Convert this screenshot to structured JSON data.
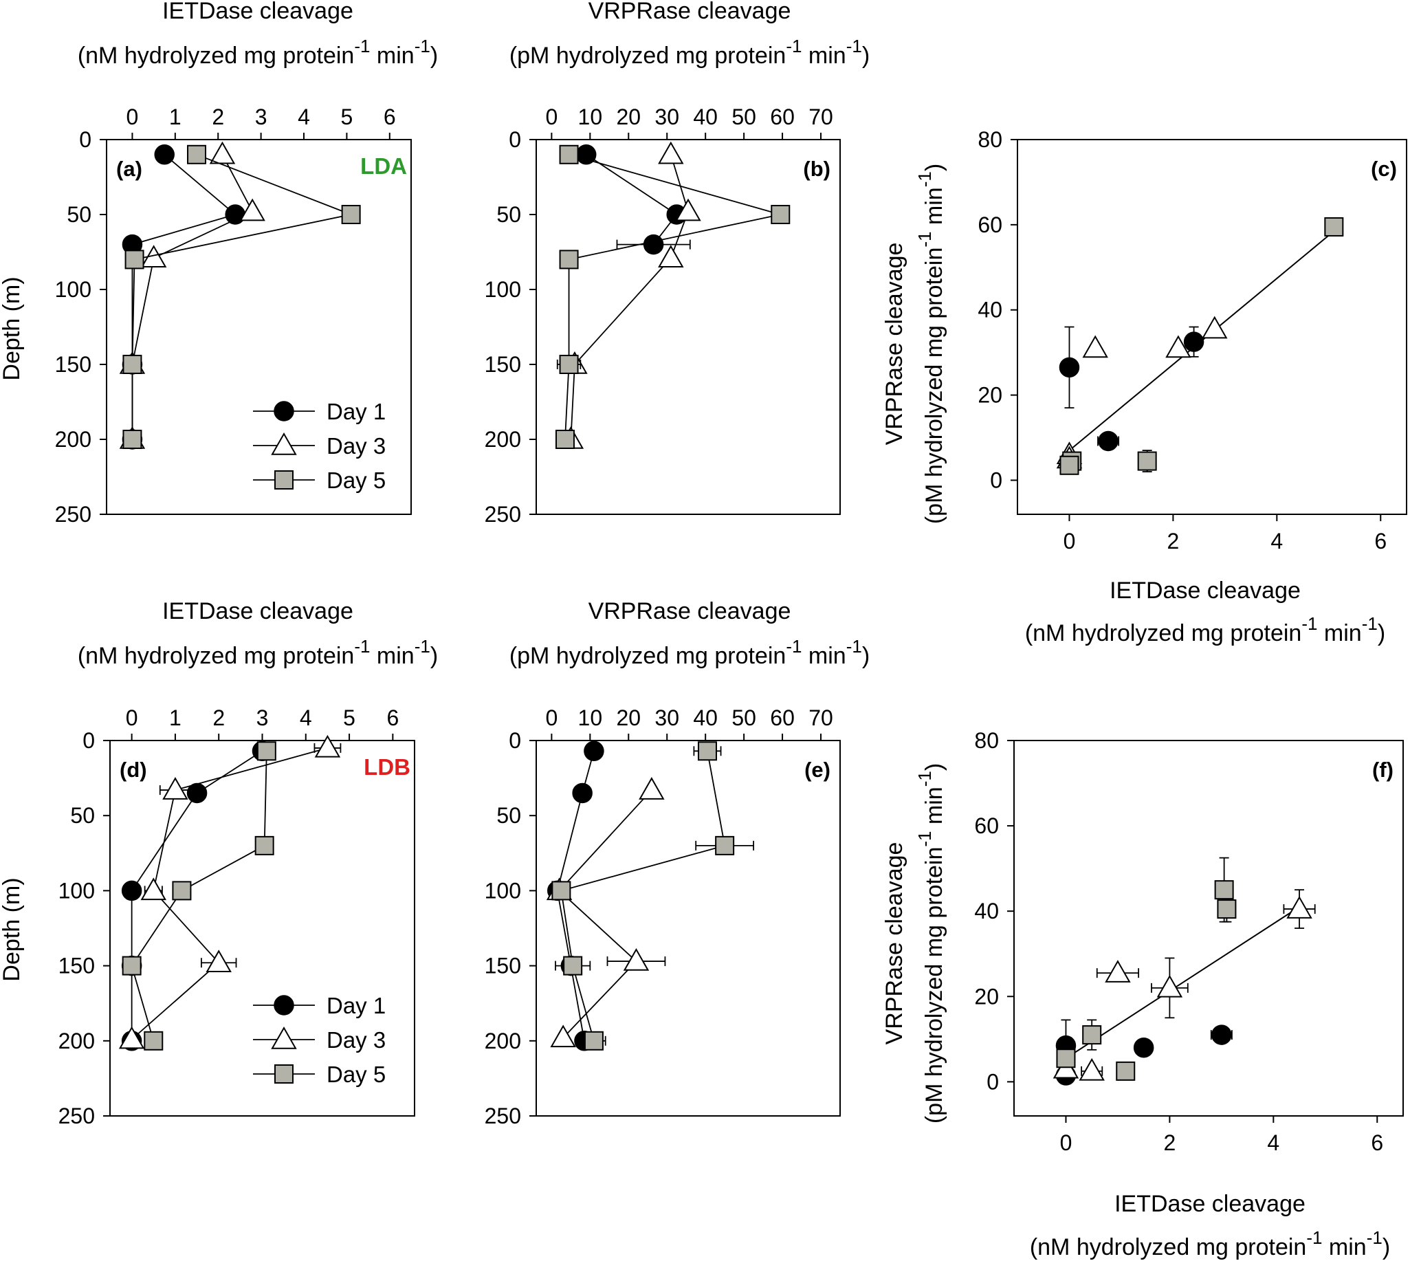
{
  "axis_titles": {
    "depth": "Depth (m)",
    "ietdase_line1": "IETDase cleavage",
    "ietdase_line2_a": "(nM hydrolyzed mg protein",
    "ietdase_line2_b": " min",
    "ietdase_line2_c": ")",
    "vrprase_line1": "VRPRase cleavage",
    "vrprase_line2_a": "(pM hydrolyzed mg protein",
    "vrprase_line2_b": " min",
    "vrprase_line2_c": ")",
    "exp": "-1"
  },
  "legend": [
    "Day 1",
    "Day 3",
    "Day 5"
  ],
  "colors": {
    "day5_fill": "#b2b2a8",
    "lda": "#2e9a2e",
    "ldb": "#e02020"
  },
  "chart_data": [
    {
      "id": "a",
      "label": "(a)",
      "site": "LDA",
      "type": "line",
      "title": "IETDase cleavage",
      "xlabel": "(nM hydrolyzed mg protein-1 min-1)",
      "ylabel": "Depth (m)",
      "xlim": [
        -0.6,
        6.5
      ],
      "ylim": [
        0,
        250
      ],
      "xticks": [
        0,
        1,
        2,
        3,
        4,
        5,
        6
      ],
      "yticks": [
        0,
        50,
        100,
        150,
        200,
        250
      ],
      "series": [
        {
          "name": "Day 1",
          "points": [
            {
              "x": 0.75,
              "y": 10
            },
            {
              "x": 2.4,
              "y": 50
            },
            {
              "x": 0,
              "y": 70
            },
            {
              "x": 0,
              "y": 150
            },
            {
              "x": 0,
              "y": 200
            }
          ]
        },
        {
          "name": "Day 3",
          "points": [
            {
              "x": 2.1,
              "y": 10
            },
            {
              "x": 2.8,
              "y": 48
            },
            {
              "x": 0.5,
              "y": 79
            },
            {
              "x": 0,
              "y": 150
            },
            {
              "x": 0,
              "y": 200
            }
          ]
        },
        {
          "name": "Day 5",
          "points": [
            {
              "x": 1.5,
              "y": 10
            },
            {
              "x": 5.1,
              "y": 50
            },
            {
              "x": 0.05,
              "y": 80
            },
            {
              "x": 0,
              "y": 150
            },
            {
              "x": 0,
              "y": 200
            }
          ]
        }
      ]
    },
    {
      "id": "b",
      "label": "(b)",
      "site": "",
      "type": "line",
      "title": "VRPRase cleavage",
      "xlabel": "(pM hydrolyzed mg protein-1 min-1)",
      "ylabel": "",
      "xlim": [
        -4,
        75
      ],
      "ylim": [
        0,
        250
      ],
      "xticks": [
        0,
        10,
        20,
        30,
        40,
        50,
        60,
        70
      ],
      "yticks": [
        0,
        50,
        100,
        150,
        200,
        250
      ],
      "series": [
        {
          "name": "Day 1",
          "points": [
            {
              "x": 9,
              "y": 10
            },
            {
              "x": 32.5,
              "y": 50
            },
            {
              "x": 26.5,
              "y": 70,
              "xerr": 9.5
            }
          ]
        },
        {
          "name": "Day 3",
          "points": [
            {
              "x": 31,
              "y": 10
            },
            {
              "x": 35.5,
              "y": 48
            },
            {
              "x": 31,
              "y": 79
            },
            {
              "x": 6,
              "y": 150
            },
            {
              "x": 5,
              "y": 200
            }
          ]
        },
        {
          "name": "Day 5",
          "points": [
            {
              "x": 4.5,
              "y": 10,
              "xerr": 2
            },
            {
              "x": 59.5,
              "y": 50
            },
            {
              "x": 4.5,
              "y": 80
            },
            {
              "x": 4.5,
              "y": 150,
              "xerr": 3
            },
            {
              "x": 3.5,
              "y": 200
            }
          ]
        }
      ]
    },
    {
      "id": "c",
      "label": "(c)",
      "site": "",
      "type": "scatter",
      "xlabel": "IETDase cleavage",
      "ylabel": "VRPRase cleavage",
      "xlim": [
        -1,
        6.5
      ],
      "ylim": [
        -8,
        80
      ],
      "xticks": [
        0,
        2,
        4,
        6
      ],
      "yticks": [
        0,
        20,
        40,
        60,
        80
      ],
      "series": [
        {
          "name": "Day 1",
          "points": [
            {
              "x": 0,
              "y": 26.5,
              "yerr": 9.5
            },
            {
              "x": 0.75,
              "y": 9.2,
              "xerr": 0.2
            },
            {
              "x": 2.4,
              "y": 32.5,
              "yerr": 3.5
            }
          ]
        },
        {
          "name": "Day 3",
          "points": [
            {
              "x": 0.5,
              "y": 31
            },
            {
              "x": 2.1,
              "y": 31
            },
            {
              "x": 2.8,
              "y": 35.5
            },
            {
              "x": 0,
              "y": 6
            },
            {
              "x": 0,
              "y": 5
            }
          ]
        },
        {
          "name": "Day 5",
          "points": [
            {
              "x": 0.05,
              "y": 4.5,
              "yerr": 2
            },
            {
              "x": 0,
              "y": 3.5
            },
            {
              "x": 1.5,
              "y": 4.5,
              "yerr": 2.5
            },
            {
              "x": 5.1,
              "y": 59.5
            }
          ]
        }
      ],
      "fit": [
        {
          "x": 0,
          "y": 7
        },
        {
          "x": 5.1,
          "y": 58.5
        }
      ]
    },
    {
      "id": "d",
      "label": "(d)",
      "site": "LDB",
      "type": "line",
      "title": "IETDase cleavage",
      "xlabel": "(nM hydrolyzed mg protein-1 min-1)",
      "ylabel": "Depth (m)",
      "xlim": [
        -0.5,
        6.5
      ],
      "ylim": [
        0,
        250
      ],
      "xticks": [
        0,
        1,
        2,
        3,
        4,
        5,
        6
      ],
      "yticks": [
        0,
        50,
        100,
        150,
        200,
        250
      ],
      "series": [
        {
          "name": "Day 1",
          "points": [
            {
              "x": 3,
              "y": 7
            },
            {
              "x": 1.5,
              "y": 35
            },
            {
              "x": 0,
              "y": 100
            },
            {
              "x": 0,
              "y": 150
            },
            {
              "x": 0,
              "y": 200
            }
          ]
        },
        {
          "name": "Day 3",
          "points": [
            {
              "x": 4.5,
              "y": 5,
              "xerr": 0.3
            },
            {
              "x": 1,
              "y": 33,
              "xerr": 0.35
            },
            {
              "x": 0.5,
              "y": 100,
              "xerr": 0.2
            },
            {
              "x": 2,
              "y": 148,
              "xerr": 0.4
            },
            {
              "x": 0,
              "y": 199
            }
          ]
        },
        {
          "name": "Day 5",
          "points": [
            {
              "x": 3.1,
              "y": 7
            },
            {
              "x": 3.05,
              "y": 70
            },
            {
              "x": 1.15,
              "y": 100
            },
            {
              "x": 0,
              "y": 150
            },
            {
              "x": 0.5,
              "y": 200
            }
          ]
        }
      ]
    },
    {
      "id": "e",
      "label": "(e)",
      "site": "",
      "type": "line",
      "title": "VRPRase cleavage",
      "xlabel": "(pM hydrolyzed mg protein-1 min-1)",
      "ylabel": "",
      "xlim": [
        -4,
        75
      ],
      "ylim": [
        0,
        250
      ],
      "xticks": [
        0,
        10,
        20,
        30,
        40,
        50,
        60,
        70
      ],
      "yticks": [
        0,
        50,
        100,
        150,
        200,
        250
      ],
      "series": [
        {
          "name": "Day 1",
          "points": [
            {
              "x": 11,
              "y": 7
            },
            {
              "x": 8,
              "y": 35
            },
            {
              "x": 1.5,
              "y": 100
            },
            {
              "x": 5,
              "y": 150
            },
            {
              "x": 8.5,
              "y": 200
            }
          ]
        },
        {
          "name": "Day 3",
          "points": [
            {
              "x": 26,
              "y": 33
            },
            {
              "x": 2,
              "y": 100
            },
            {
              "x": 22,
              "y": 147,
              "xerr": 7.5
            },
            {
              "x": 3,
              "y": 198
            }
          ]
        },
        {
          "name": "Day 5",
          "points": [
            {
              "x": 40.5,
              "y": 7,
              "xerr": 3.5
            },
            {
              "x": 45,
              "y": 70,
              "xerr": 7.5
            },
            {
              "x": 2.5,
              "y": 100
            },
            {
              "x": 5.5,
              "y": 150,
              "xerr": 4.5
            },
            {
              "x": 11,
              "y": 200,
              "xerr": 3
            }
          ]
        }
      ]
    },
    {
      "id": "f",
      "label": "(f)",
      "site": "",
      "type": "scatter",
      "xlabel": "IETDase cleavage",
      "ylabel": "VRPRase cleavage",
      "xlim": [
        -1,
        6.5
      ],
      "ylim": [
        -8,
        80
      ],
      "xticks": [
        0,
        2,
        4,
        6
      ],
      "yticks": [
        0,
        20,
        40,
        60,
        80
      ],
      "series": [
        {
          "name": "Day 1",
          "points": [
            {
              "x": 0,
              "y": 8.5,
              "yerr": 6
            },
            {
              "x": 0,
              "y": 1.5
            },
            {
              "x": 1.5,
              "y": 8
            },
            {
              "x": 3,
              "y": 11,
              "xerr": 0.2
            }
          ]
        },
        {
          "name": "Day 3",
          "points": [
            {
              "x": 4.5,
              "y": 40.5,
              "xerr": 0.3,
              "yerr": 4.5
            },
            {
              "x": 1,
              "y": 25.5,
              "xerr": 0.4
            },
            {
              "x": 2,
              "y": 22,
              "xerr": 0.35,
              "yerr": 7
            },
            {
              "x": 0.5,
              "y": 2.5,
              "xerr": 0.2
            },
            {
              "x": 0,
              "y": 3
            }
          ]
        },
        {
          "name": "Day 5",
          "points": [
            {
              "x": 3.05,
              "y": 45,
              "yerr": 7.5
            },
            {
              "x": 3.1,
              "y": 40.5,
              "yerr": 3
            },
            {
              "x": 0.5,
              "y": 11,
              "yerr": 3.5
            },
            {
              "x": 1.15,
              "y": 2.5
            },
            {
              "x": 0,
              "y": 5.5
            }
          ]
        }
      ],
      "fit": [
        {
          "x": 0,
          "y": 5.5
        },
        {
          "x": 4.5,
          "y": 41
        }
      ]
    }
  ]
}
